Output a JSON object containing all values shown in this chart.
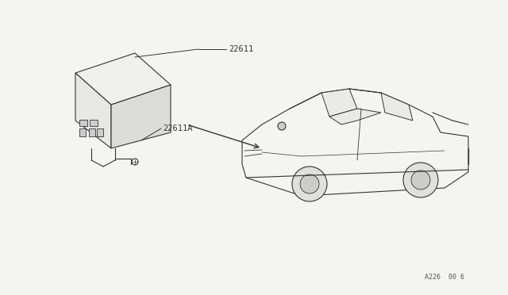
{
  "bg_color": "#f5f5f0",
  "line_color": "#333333",
  "label_22611": "22611",
  "label_22611A": "22611A",
  "footnote": "A226  00 6",
  "fig_width": 6.4,
  "fig_height": 3.72,
  "dpi": 100
}
